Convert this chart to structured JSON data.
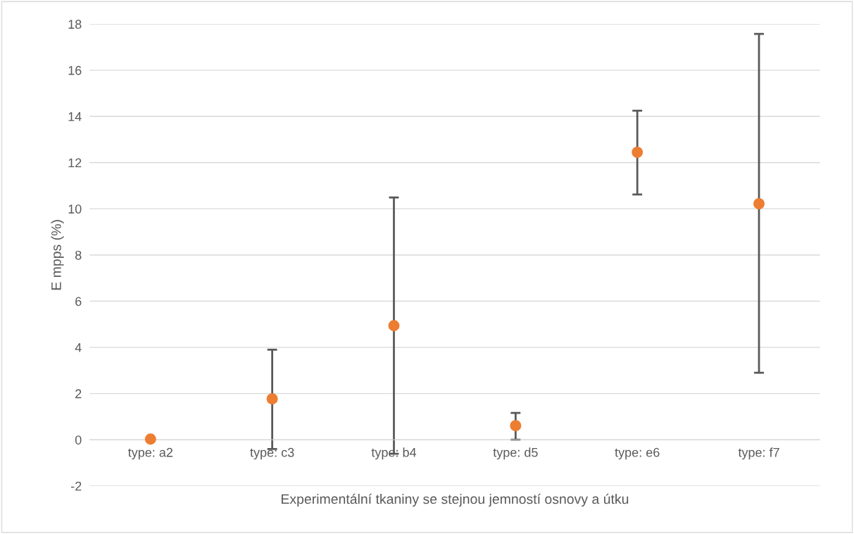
{
  "chart_data": {
    "type": "scatter",
    "xlabel": "Experimentální tkaniny se stejnou jemností osnovy a útku",
    "ylabel": "E mpps (%)",
    "categories": [
      "type: a2",
      "type: c3",
      "type: b4",
      "type: d5",
      "type: e6",
      "type: f7"
    ],
    "values": [
      0.03,
      1.77,
      4.94,
      0.61,
      12.45,
      10.22
    ],
    "errors": [
      null,
      [
        -0.4,
        3.9
      ],
      [
        -0.61,
        10.49
      ],
      [
        0.0,
        1.16
      ],
      [
        10.62,
        14.25
      ],
      [
        2.9,
        17.57
      ]
    ],
    "color": "#ed7d31",
    "marker": "circle",
    "ylim": [
      -2,
      18
    ],
    "yticks": [
      -2,
      0,
      2,
      4,
      6,
      8,
      10,
      12,
      14,
      16,
      18
    ],
    "grid": "y",
    "legend": false
  }
}
